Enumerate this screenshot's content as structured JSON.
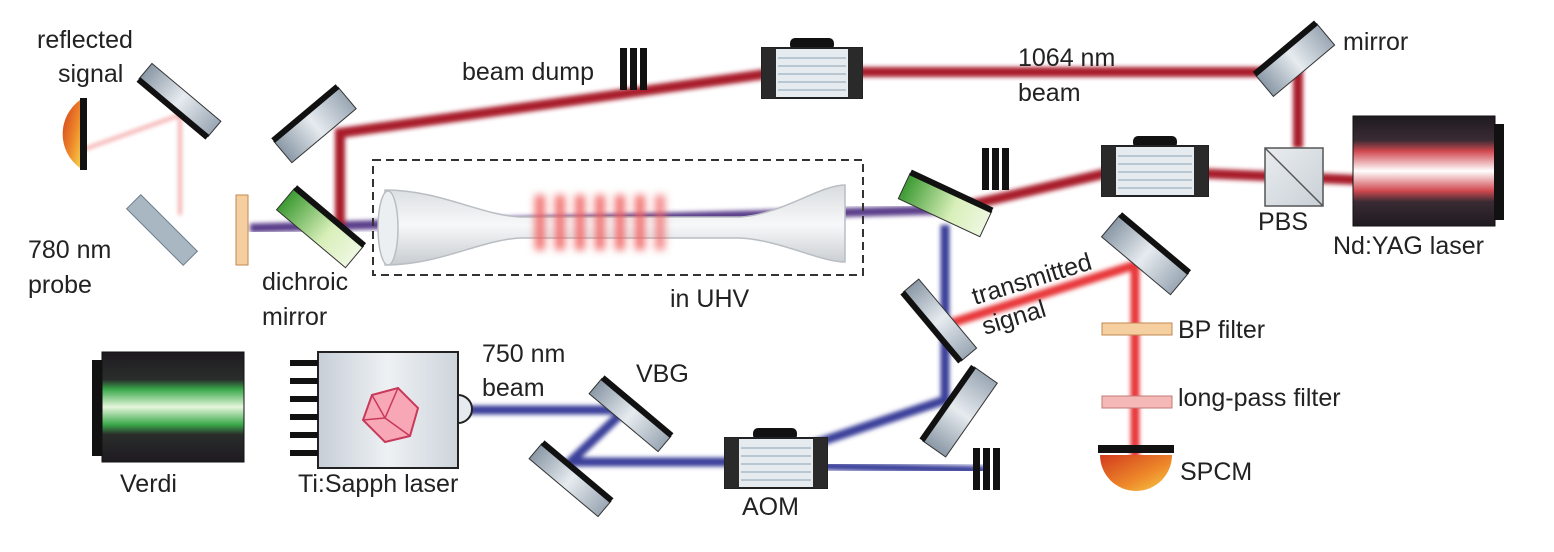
{
  "labels": {
    "reflected_signal_1": "reflected",
    "reflected_signal_2": "signal",
    "probe_1": "780 nm",
    "probe_2": "probe",
    "dichroic_1": "dichroic",
    "dichroic_2": "mirror",
    "beam_dump": "beam dump",
    "beam_1064_1": "1064 nm",
    "beam_1064_2": "beam",
    "mirror": "mirror",
    "in_uhv": "in UHV",
    "pbs": "PBS",
    "ndyag": "Nd:YAG laser",
    "transmitted_1": "transmitted",
    "transmitted_2": "signal",
    "bp_filter": "BP filter",
    "longpass_filter": "long-pass filter",
    "spcm": "SPCM",
    "beam_750_1": "750 nm",
    "beam_750_2": "beam",
    "vbg": "VBG",
    "verdi": "Verdi",
    "tisapph": "Ti:Sapph laser",
    "aom": "AOM"
  },
  "colors": {
    "probe_red": "#e8383a",
    "beam_1064": "#a81c2c",
    "beam_750": "#3a3f9a",
    "pump_green": "#3cb44a",
    "detector_orange": "#e8822a"
  }
}
